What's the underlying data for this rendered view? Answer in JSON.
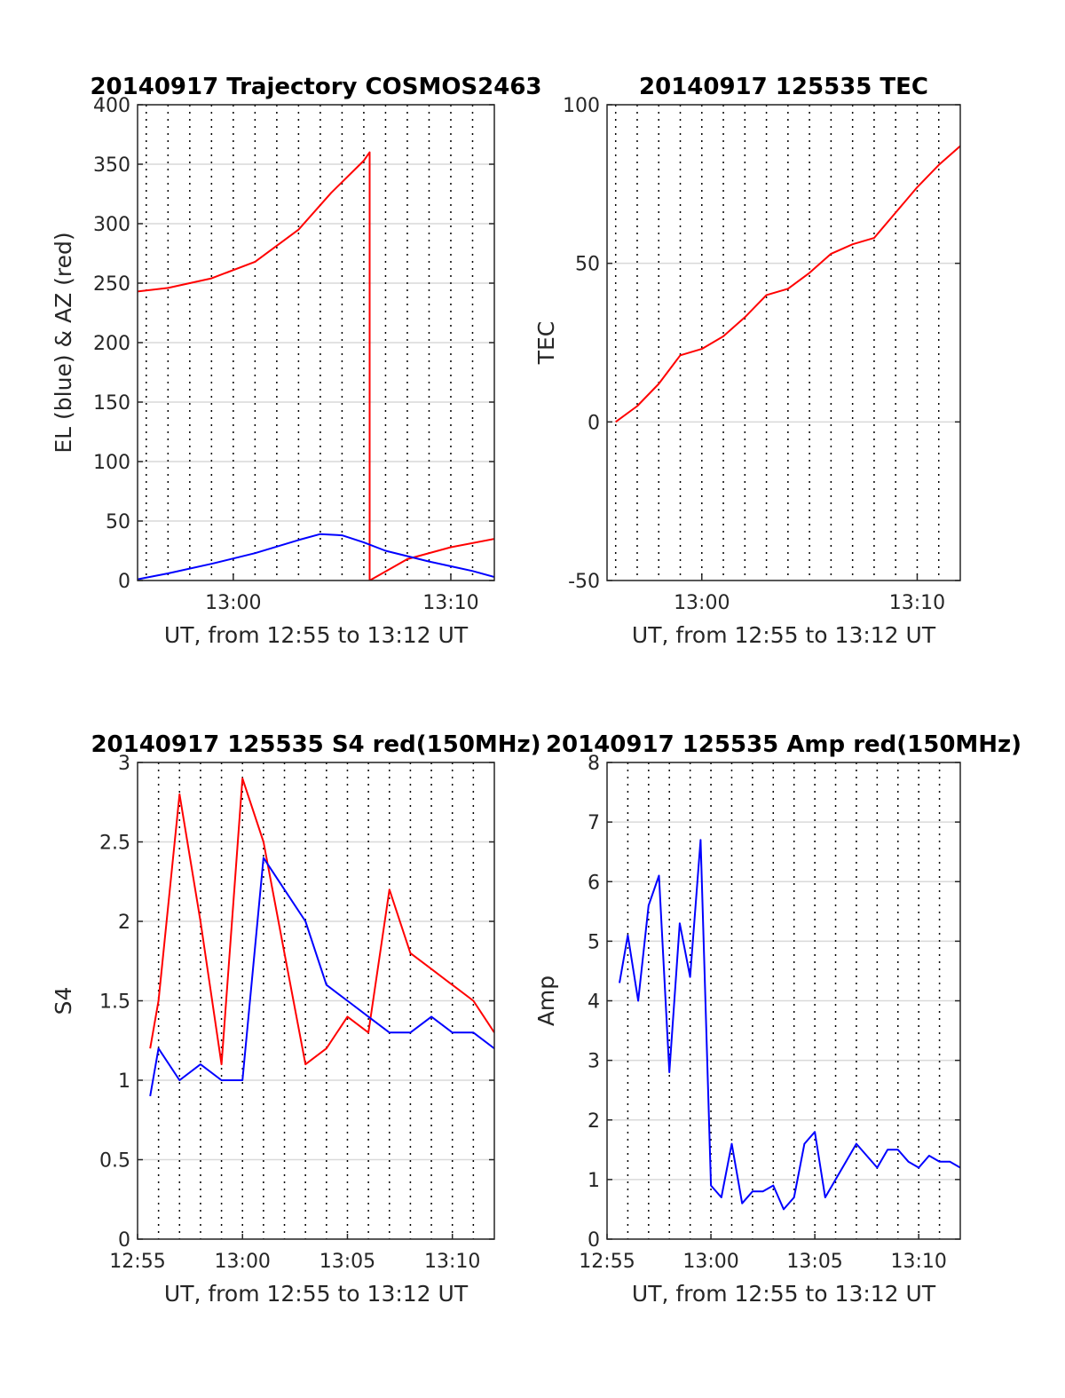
{
  "colors": {
    "red": "#ff0000",
    "blue": "#0000ff",
    "grid": "#d9d9d9",
    "axis": "#262626"
  },
  "chart_data": [
    {
      "type": "line",
      "title": "20140917 Trajectory COSMOS2463",
      "xlabel": "UT, from 12:55 to 13:12 UT",
      "ylabel": "EL (blue) & AZ (red)",
      "x_unit": "minutes after 12:55 UT",
      "xlim": [
        0.6,
        17
      ],
      "ylim": [
        0,
        400
      ],
      "yticks": [
        0,
        50,
        100,
        150,
        200,
        250,
        300,
        350,
        400
      ],
      "xticks": [
        {
          "value": 5,
          "label": "13:00"
        },
        {
          "value": 15,
          "label": "13:10"
        }
      ],
      "grid": true,
      "series": [
        {
          "color": "red",
          "x": [
            0.6,
            2,
            4,
            6,
            8,
            9.5,
            11,
            11.27,
            11.27,
            13,
            15,
            17
          ],
          "y": [
            243,
            246,
            254,
            268,
            295,
            326,
            353,
            360,
            0,
            18,
            28,
            35
          ]
        },
        {
          "color": "blue",
          "x": [
            0.6,
            2,
            4,
            6,
            8,
            9,
            10,
            11,
            12,
            14,
            16,
            17
          ],
          "y": [
            1,
            6,
            14,
            23,
            34,
            39,
            38,
            32,
            25,
            16,
            8,
            3
          ]
        }
      ]
    },
    {
      "type": "line",
      "title": "20140917 125535 TEC",
      "xlabel": "UT, from 12:55 to 13:12 UT",
      "ylabel": "TEC",
      "x_unit": "minutes after 12:55 UT",
      "xlim": [
        0.6,
        17
      ],
      "ylim": [
        -50,
        100
      ],
      "yticks": [
        -50,
        0,
        50,
        100
      ],
      "xticks": [
        {
          "value": 5,
          "label": "13:00"
        },
        {
          "value": 15,
          "label": "13:10"
        }
      ],
      "grid": true,
      "series": [
        {
          "color": "red",
          "x": [
            1,
            2,
            3,
            4,
            5,
            6,
            7,
            8,
            9,
            10,
            11,
            12,
            13,
            14,
            15,
            16,
            17
          ],
          "y": [
            0,
            5,
            12,
            21,
            23,
            27,
            33,
            40,
            42,
            47,
            53,
            56,
            58,
            66,
            74,
            81,
            87
          ]
        }
      ]
    },
    {
      "type": "line",
      "title": "20140917 125535 S4 red(150MHz)",
      "xlabel": "UT, from 12:55 to 13:12 UT",
      "ylabel": "S4",
      "x_unit": "minutes after 12:55 UT",
      "xlim": [
        0,
        17
      ],
      "ylim": [
        0,
        3
      ],
      "yticks": [
        0,
        0.5,
        1,
        1.5,
        2,
        2.5,
        3
      ],
      "xticks": [
        {
          "value": 0,
          "label": "12:55"
        },
        {
          "value": 5,
          "label": "13:00"
        },
        {
          "value": 10,
          "label": "13:05"
        },
        {
          "value": 15,
          "label": "13:10"
        }
      ],
      "grid": true,
      "series": [
        {
          "color": "red",
          "x": [
            0.6,
            1,
            2,
            3,
            4,
            5,
            6,
            7,
            8,
            9,
            10,
            11,
            12,
            13,
            14,
            15,
            16,
            17
          ],
          "y": [
            1.2,
            1.5,
            2.8,
            2.0,
            1.1,
            2.9,
            2.5,
            1.8,
            1.1,
            1.2,
            1.4,
            1.3,
            2.2,
            1.8,
            1.7,
            1.6,
            1.5,
            1.3
          ]
        },
        {
          "color": "blue",
          "x": [
            0.6,
            1,
            2,
            3,
            4,
            5,
            6,
            7,
            8,
            9,
            10,
            11,
            12,
            13,
            14,
            15,
            16,
            17
          ],
          "y": [
            0.9,
            1.2,
            1.0,
            1.1,
            1.0,
            1.0,
            2.4,
            2.2,
            2.0,
            1.6,
            1.5,
            1.4,
            1.3,
            1.3,
            1.4,
            1.3,
            1.3,
            1.2
          ]
        }
      ]
    },
    {
      "type": "line",
      "title": "20140917 125535 Amp red(150MHz)",
      "xlabel": "UT, from 12:55 to 13:12 UT",
      "ylabel": "Amp",
      "x_unit": "minutes after 12:55 UT",
      "xlim": [
        0,
        17
      ],
      "ylim": [
        0,
        8
      ],
      "yticks": [
        0,
        1,
        2,
        3,
        4,
        5,
        6,
        7,
        8
      ],
      "xticks": [
        {
          "value": 0,
          "label": "12:55"
        },
        {
          "value": 5,
          "label": "13:00"
        },
        {
          "value": 10,
          "label": "13:05"
        },
        {
          "value": 15,
          "label": "13:10"
        }
      ],
      "grid": true,
      "series": [
        {
          "color": "blue",
          "x": [
            0.6,
            1,
            1.5,
            2,
            2.5,
            3,
            3.5,
            4,
            4.5,
            5,
            5.5,
            6,
            6.5,
            7,
            7.5,
            8,
            8.5,
            9,
            9.5,
            10,
            10.5,
            11,
            11.5,
            12,
            12.5,
            13,
            13.5,
            14,
            14.5,
            15,
            15.5,
            16,
            16.5,
            17
          ],
          "y": [
            4.3,
            5.1,
            4.0,
            5.6,
            6.1,
            2.8,
            5.3,
            4.4,
            6.7,
            0.9,
            0.7,
            1.6,
            0.6,
            0.8,
            0.8,
            0.9,
            0.5,
            0.7,
            1.6,
            1.8,
            0.7,
            1.0,
            1.3,
            1.6,
            1.4,
            1.2,
            1.5,
            1.5,
            1.3,
            1.2,
            1.4,
            1.3,
            1.3,
            1.2
          ]
        }
      ]
    }
  ]
}
